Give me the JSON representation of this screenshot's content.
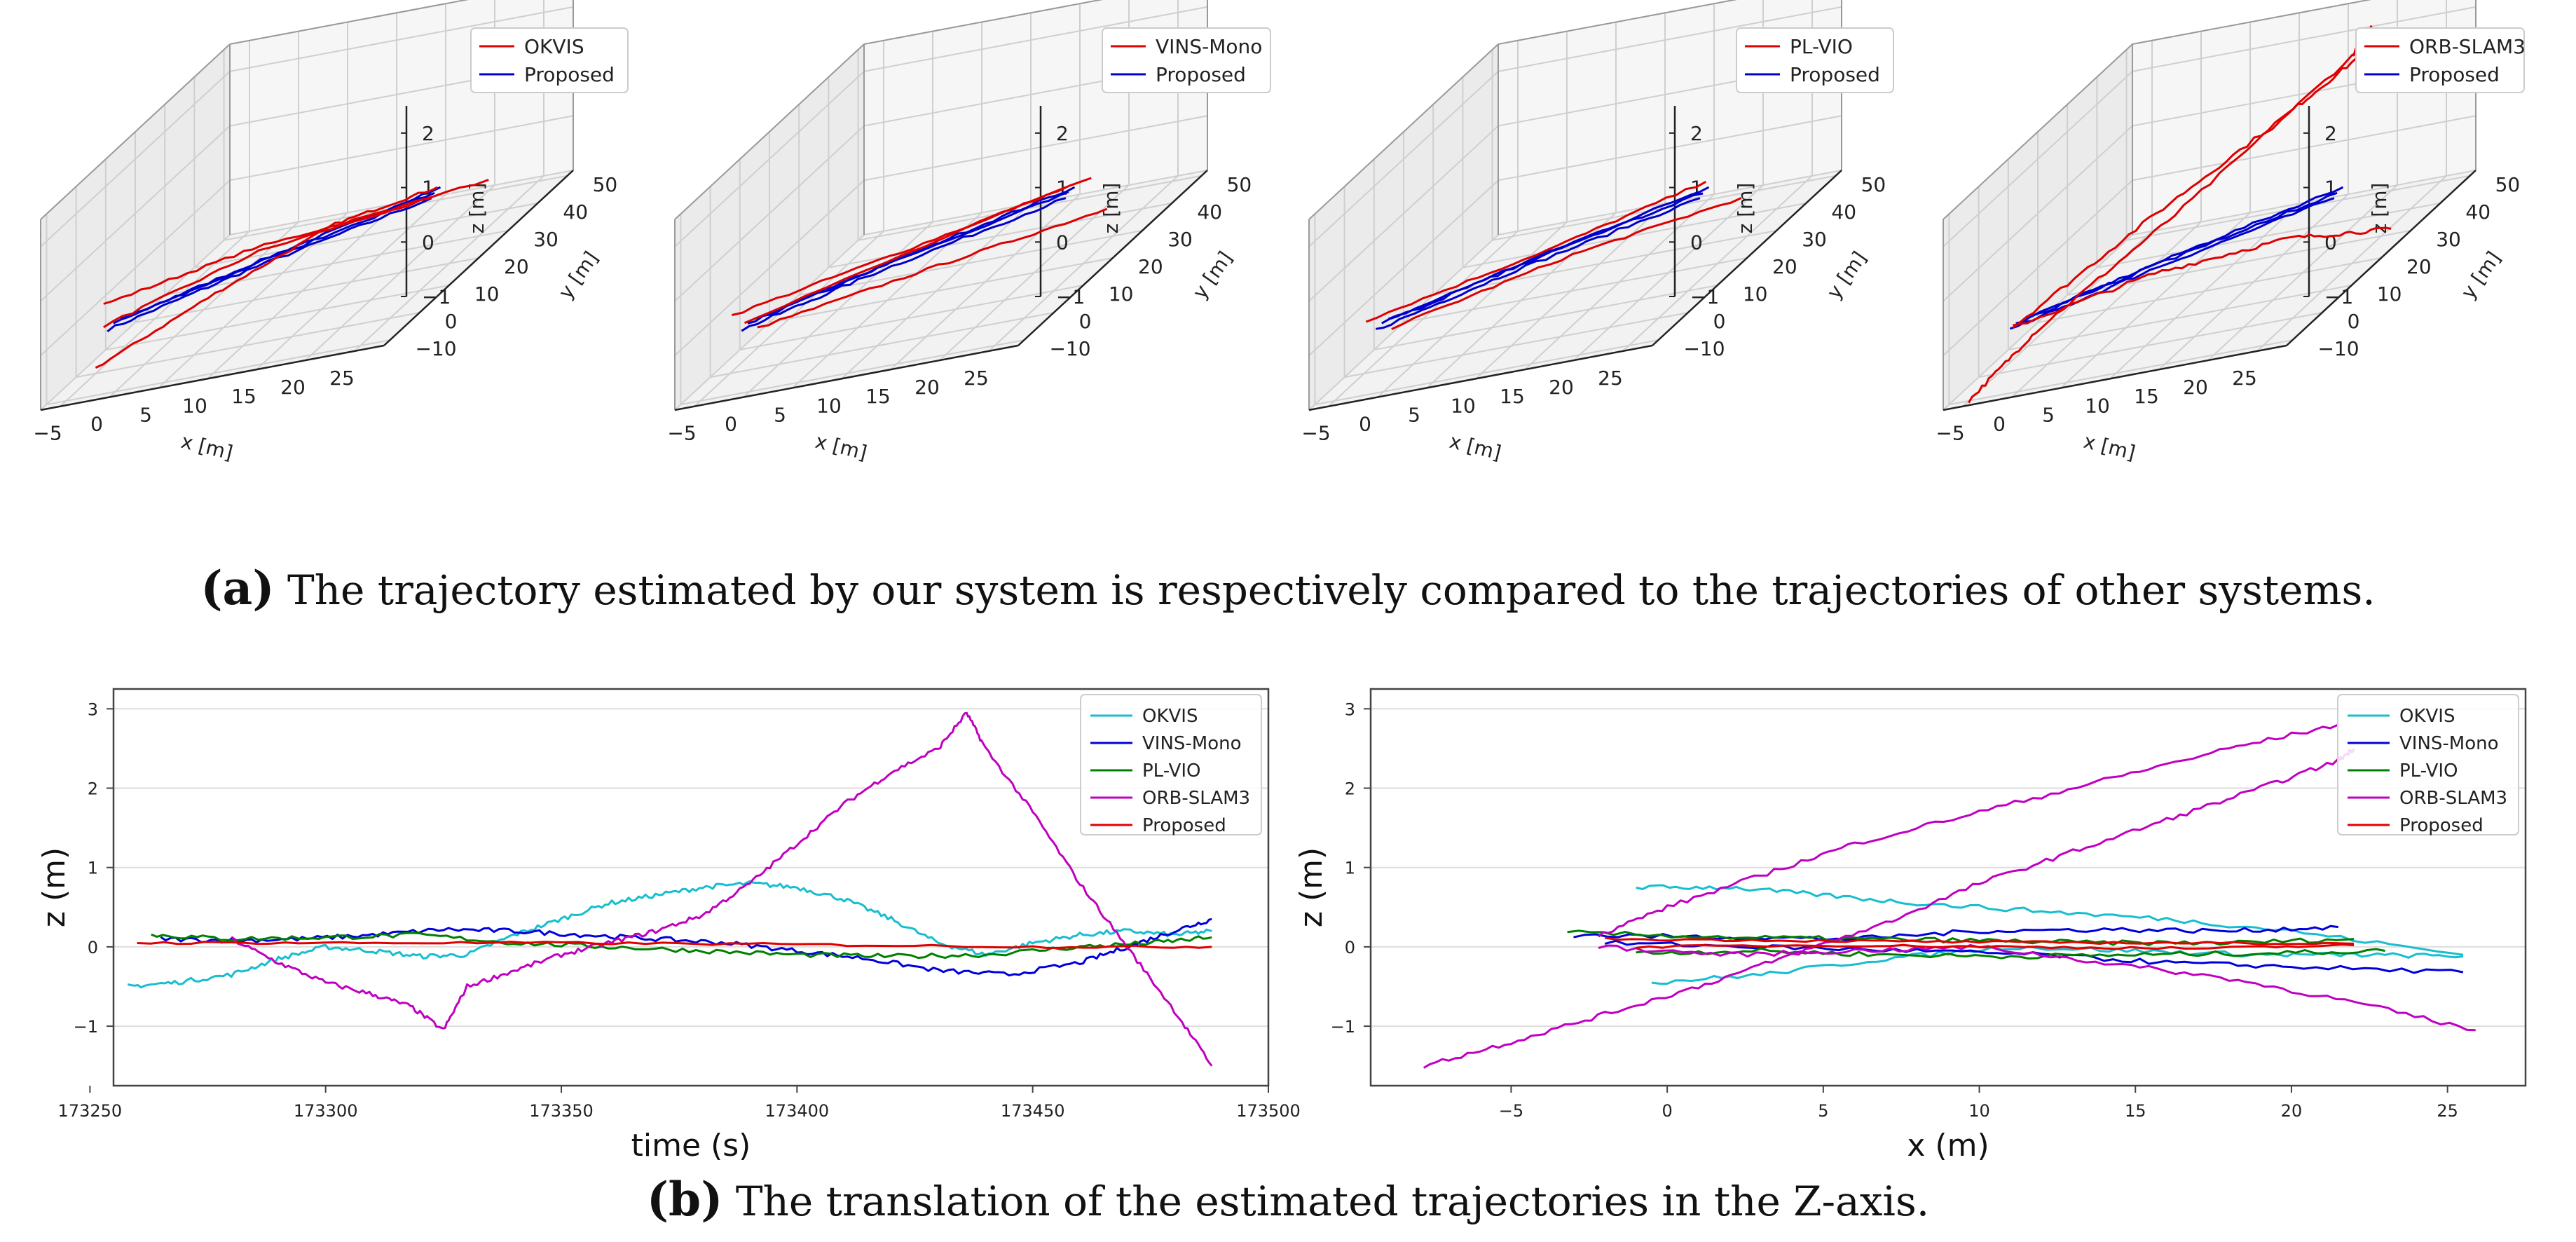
{
  "figure": {
    "caption_a": {
      "label": "(a)",
      "text": "The trajectory estimated by our system is respectively compared to the trajectories of other systems."
    },
    "caption_b": {
      "label": "(b)",
      "text": "The translation of the estimated trajectories in the Z-axis."
    }
  },
  "colors": {
    "OKVIS": "#17becf",
    "VINS-Mono": "#0000dd",
    "PL-VIO": "#008000",
    "ORB-SLAM3": "#c000c0",
    "Proposed": "#e00000",
    "red3d": "#dd0000",
    "blue3d": "#0000cc"
  },
  "chart_data": [
    {
      "type": "line3d",
      "legend": [
        "OKVIS",
        "Proposed"
      ],
      "xlabel": "x [m]",
      "ylabel": "y [m]",
      "zlabel": "z [m]",
      "xticks": [
        "−5",
        "0",
        "5",
        "10",
        "15",
        "20",
        "25"
      ],
      "yticks": [
        "−10",
        "0",
        "10",
        "20",
        "30",
        "40",
        "50"
      ],
      "zticks": [
        "−1",
        "0",
        "1",
        "2"
      ],
      "xlim": [
        -7,
        28
      ],
      "ylim": [
        -12,
        52
      ],
      "zlim": [
        -1,
        2.5
      ]
    },
    {
      "type": "line3d",
      "legend": [
        "VINS-Mono",
        "Proposed"
      ],
      "xlabel": "x [m]",
      "ylabel": "y [m]",
      "zlabel": "z [m]",
      "xticks": [
        "−5",
        "0",
        "5",
        "10",
        "15",
        "20",
        "25"
      ],
      "yticks": [
        "−10",
        "0",
        "10",
        "20",
        "30",
        "40",
        "50"
      ],
      "zticks": [
        "−1",
        "0",
        "1",
        "2"
      ],
      "xlim": [
        -7,
        28
      ],
      "ylim": [
        -12,
        52
      ],
      "zlim": [
        -1,
        2.5
      ]
    },
    {
      "type": "line3d",
      "legend": [
        "PL-VIO",
        "Proposed"
      ],
      "xlabel": "x [m]",
      "ylabel": "y [m]",
      "zlabel": "z [m]",
      "xticks": [
        "−5",
        "0",
        "5",
        "10",
        "15",
        "20",
        "25"
      ],
      "yticks": [
        "−10",
        "0",
        "10",
        "20",
        "30",
        "40",
        "50"
      ],
      "zticks": [
        "−1",
        "0",
        "1",
        "2"
      ],
      "xlim": [
        -7,
        28
      ],
      "ylim": [
        -12,
        52
      ],
      "zlim": [
        -1,
        2.5
      ]
    },
    {
      "type": "line3d",
      "legend": [
        "ORB-SLAM3",
        "Proposed"
      ],
      "xlabel": "x [m]",
      "ylabel": "y [m]",
      "zlabel": "z [m]",
      "xticks": [
        "−5",
        "0",
        "5",
        "10",
        "15",
        "20",
        "25"
      ],
      "yticks": [
        "−10",
        "0",
        "10",
        "20",
        "30",
        "40",
        "50"
      ],
      "zticks": [
        "−1",
        "0",
        "1",
        "2"
      ],
      "xlim": [
        -7,
        28
      ],
      "ylim": [
        -12,
        52
      ],
      "zlim": [
        -1,
        2.5
      ]
    },
    {
      "type": "line",
      "xlabel": "time (s)",
      "ylabel": "z (m)",
      "xlim": [
        173255,
        173500
      ],
      "ylim": [
        -1.75,
        3.25
      ],
      "xticks": [
        173250,
        173300,
        173350,
        173400,
        173450,
        173500
      ],
      "yticks": [
        -1,
        0,
        1,
        2,
        3
      ],
      "legend": [
        "OKVIS",
        "VINS-Mono",
        "PL-VIO",
        "ORB-SLAM3",
        "Proposed"
      ],
      "series": [
        {
          "name": "OKVIS",
          "x": [
            173258,
            173268,
            173280,
            173290,
            173300,
            173310,
            173320,
            173330,
            173340,
            173350,
            173360,
            173370,
            173380,
            173390,
            173400,
            173410,
            173420,
            173430,
            173440,
            173450,
            173460,
            173470,
            173480,
            173488
          ],
          "y": [
            -0.5,
            -0.45,
            -0.35,
            -0.15,
            0.0,
            -0.05,
            -0.12,
            -0.1,
            0.15,
            0.35,
            0.55,
            0.65,
            0.75,
            0.8,
            0.75,
            0.6,
            0.35,
            0.05,
            -0.1,
            0.05,
            0.15,
            0.2,
            0.15,
            0.2
          ]
        },
        {
          "name": "VINS-Mono",
          "x": [
            173265,
            173280,
            173295,
            173310,
            173325,
            173340,
            173355,
            173370,
            173385,
            173400,
            173415,
            173430,
            173445,
            173460,
            173470,
            173480,
            173488
          ],
          "y": [
            0.1,
            0.08,
            0.1,
            0.15,
            0.22,
            0.2,
            0.15,
            0.1,
            0.05,
            -0.05,
            -0.15,
            -0.3,
            -0.35,
            -0.2,
            0.0,
            0.2,
            0.35
          ]
        },
        {
          "name": "PL-VIO",
          "x": [
            173263,
            173280,
            173300,
            173320,
            173340,
            173360,
            173380,
            173400,
            173420,
            173440,
            173460,
            173475,
            173488
          ],
          "y": [
            0.15,
            0.1,
            0.12,
            0.15,
            0.05,
            0.0,
            -0.05,
            -0.1,
            -0.12,
            -0.1,
            0.0,
            0.05,
            0.12
          ]
        },
        {
          "name": "ORB-SLAM3",
          "x": [
            173280,
            173290,
            173300,
            173310,
            173318,
            173325,
            173330,
            173340,
            173350,
            173360,
            173370,
            173380,
            173390,
            173400,
            173410,
            173420,
            173430,
            173436,
            173440,
            173450,
            173460,
            173470,
            173480,
            173488
          ],
          "y": [
            0.1,
            -0.2,
            -0.45,
            -0.6,
            -0.75,
            -1.05,
            -0.5,
            -0.3,
            -0.1,
            0.05,
            0.2,
            0.4,
            0.8,
            1.3,
            1.8,
            2.2,
            2.5,
            2.95,
            2.5,
            1.7,
            0.8,
            0.0,
            -0.8,
            -1.5
          ]
        },
        {
          "name": "Proposed",
          "x": [
            173260,
            173300,
            173350,
            173400,
            173450,
            173488
          ],
          "y": [
            0.05,
            0.05,
            0.05,
            0.03,
            0.0,
            0.0
          ]
        }
      ]
    },
    {
      "type": "line",
      "xlabel": "x (m)",
      "ylabel": "z (m)",
      "xlim": [
        -9.5,
        27.5
      ],
      "ylim": [
        -1.75,
        3.25
      ],
      "xticks": [
        -5,
        0,
        5,
        10,
        15,
        20,
        25
      ],
      "yticks": [
        -1,
        0,
        1,
        2,
        3
      ],
      "legend": [
        "OKVIS",
        "VINS-Mono",
        "PL-VIO",
        "ORB-SLAM3",
        "Proposed"
      ],
      "series": [
        {
          "name": "OKVIS",
          "x": [
            -0.5,
            3,
            7,
            11,
            15,
            19,
            22,
            25.5
          ],
          "y": [
            -0.45,
            -0.35,
            -0.15,
            0.0,
            -0.05,
            -0.1,
            -0.1,
            -0.12
          ]
        },
        {
          "name": "OKVIS",
          "x": [
            -1,
            2,
            5,
            8,
            12,
            16,
            20,
            25.5
          ],
          "y": [
            0.75,
            0.75,
            0.65,
            0.55,
            0.45,
            0.35,
            0.2,
            -0.1
          ]
        },
        {
          "name": "VINS-Mono",
          "x": [
            -3,
            2,
            6,
            10,
            14,
            18,
            21.5
          ],
          "y": [
            0.15,
            0.12,
            0.1,
            0.2,
            0.22,
            0.2,
            0.25
          ]
        },
        {
          "name": "VINS-Mono",
          "x": [
            -2,
            3,
            8,
            12,
            16,
            20,
            25.5
          ],
          "y": [
            0.05,
            0.0,
            -0.05,
            -0.1,
            -0.2,
            -0.25,
            -0.32
          ]
        },
        {
          "name": "PL-VIO",
          "x": [
            -3.2,
            2,
            6,
            10,
            14,
            18,
            22
          ],
          "y": [
            0.18,
            0.12,
            0.1,
            0.08,
            0.05,
            0.05,
            0.1
          ]
        },
        {
          "name": "PL-VIO",
          "x": [
            -1,
            3,
            7,
            11,
            15,
            19,
            23
          ],
          "y": [
            -0.08,
            -0.05,
            -0.1,
            -0.12,
            -0.1,
            -0.08,
            -0.05
          ]
        },
        {
          "name": "ORB-SLAM3",
          "x": [
            -7.8,
            -5,
            -2,
            1,
            4,
            7,
            10,
            13,
            16,
            19,
            21.5,
            22
          ],
          "y": [
            -1.5,
            -1.2,
            -0.85,
            -0.5,
            -0.1,
            0.3,
            0.8,
            1.2,
            1.6,
            2.0,
            2.35,
            2.5
          ]
        },
        {
          "name": "ORB-SLAM3",
          "x": [
            -2.2,
            0,
            3,
            6,
            10,
            14,
            18,
            21.5
          ],
          "y": [
            0.15,
            0.5,
            0.9,
            1.3,
            1.7,
            2.1,
            2.5,
            2.8
          ]
        },
        {
          "name": "ORB-SLAM3",
          "x": [
            -2.2,
            2,
            6,
            10,
            14,
            18,
            22,
            25.9
          ],
          "y": [
            0.0,
            -0.1,
            -0.05,
            0.0,
            -0.2,
            -0.4,
            -0.7,
            -1.05
          ]
        },
        {
          "name": "Proposed",
          "x": [
            -2,
            4,
            10,
            16,
            22
          ],
          "y": [
            0.1,
            0.08,
            0.06,
            0.05,
            0.04
          ]
        },
        {
          "name": "Proposed",
          "x": [
            -1,
            5,
            11,
            17,
            22
          ],
          "y": [
            0.0,
            0.02,
            0.0,
            -0.02,
            0.02
          ]
        }
      ]
    }
  ]
}
